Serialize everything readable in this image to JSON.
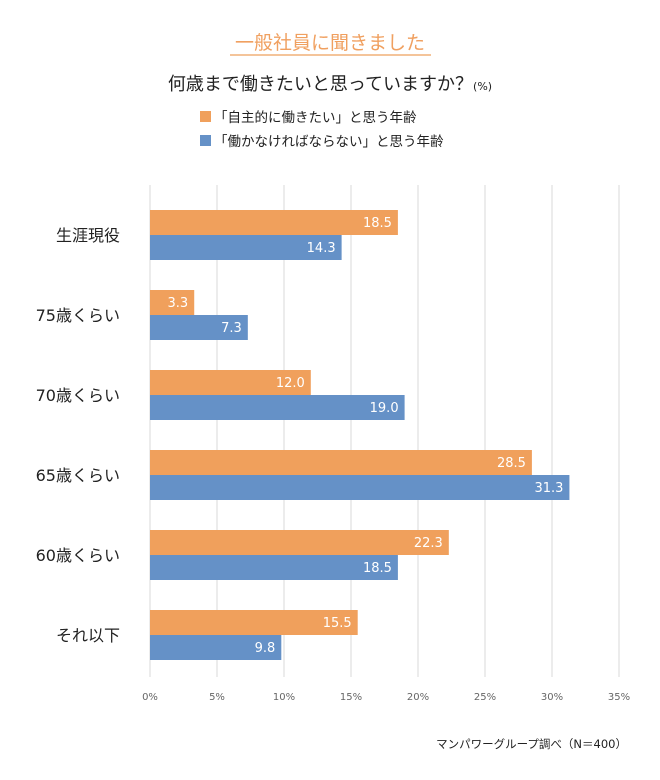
{
  "subtitle": "一般社員に聞きました",
  "title": "何歳まで働きたいと思っていますか？",
  "title_unit": "(%)",
  "source": "マンパワーグループ調べ（N＝400）",
  "colors": {
    "orange": "#f0a05c",
    "blue": "#6591c7",
    "grid": "#d9d9d9"
  },
  "chart_data": {
    "type": "bar",
    "orientation": "horizontal",
    "categories": [
      "生涯現役",
      "75歳くらい",
      "70歳くらい",
      "65歳くらい",
      "60歳くらい",
      "それ以下"
    ],
    "series": [
      {
        "name": "「自主的に働きたい」と思う年齢",
        "color": "#f0a05c",
        "values": [
          18.5,
          3.3,
          12.0,
          28.5,
          22.3,
          15.5
        ]
      },
      {
        "name": "「働かなければならない」と思う年齢",
        "color": "#6591c7",
        "values": [
          14.3,
          7.3,
          19.0,
          31.3,
          18.5,
          9.8
        ]
      }
    ],
    "xlim": [
      0,
      35
    ],
    "xticks": [
      "0%",
      "5%",
      "10%",
      "15%",
      "20%",
      "25%",
      "30%",
      "35%"
    ],
    "grid": true,
    "legend_position": "top"
  }
}
